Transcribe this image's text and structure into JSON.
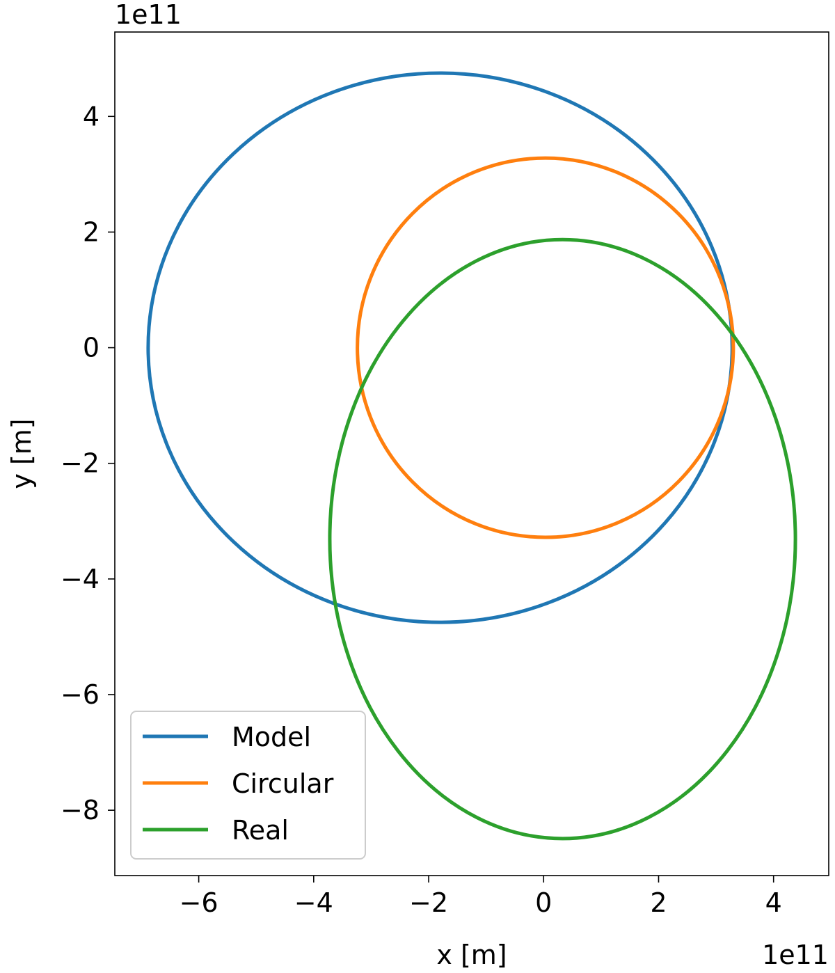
{
  "chart_data": {
    "type": "line",
    "xlabel": "x [m]",
    "ylabel": "y [m]",
    "x_offset_label": "1e11",
    "y_offset_label": "1e11",
    "xlim": [
      -7.46,
      4.96
    ],
    "ylim": [
      -9.13,
      5.46
    ],
    "x_ticks": [
      -6,
      -4,
      -2,
      0,
      2,
      4
    ],
    "y_ticks": [
      -8,
      -6,
      -4,
      -2,
      0,
      2,
      4
    ],
    "x_tick_labels": [
      "−6",
      "−4",
      "−2",
      "0",
      "2",
      "4"
    ],
    "y_tick_labels": [
      "−8",
      "−6",
      "−4",
      "−2",
      "0",
      "2",
      "4"
    ],
    "grid": false,
    "legend_position": "lower-left",
    "units_note": "axis values in units of 1e11 m",
    "series": [
      {
        "name": "Model",
        "color": "#1f77b4",
        "shape": "ellipse",
        "center": [
          -1.8,
          0.0
        ],
        "semi_axis_x": 5.08,
        "semi_axis_y": 4.75
      },
      {
        "name": "Circular",
        "color": "#ff7f0e",
        "shape": "ellipse",
        "center": [
          0.03,
          0.0
        ],
        "semi_axis_x": 3.27,
        "semi_axis_y": 3.28
      },
      {
        "name": "Real",
        "color": "#2ca02c",
        "shape": "ellipse",
        "center": [
          0.33,
          -3.31
        ],
        "semi_axis_x": 4.05,
        "semi_axis_y": 5.18
      }
    ]
  }
}
